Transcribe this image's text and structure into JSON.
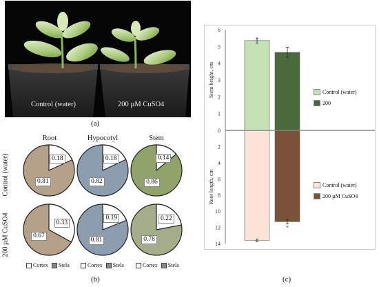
{
  "panel_a": {
    "photo_left_label": "Control (water)",
    "photo_right_label": "200 µM  CuSO4",
    "caption": "(a)"
  },
  "panel_b": {
    "caption": "(b)",
    "columns": [
      "Root",
      "Hypocotyl",
      "Stem"
    ],
    "rows": [
      "Control (water)",
      "200 µM CuSO4"
    ],
    "legend": {
      "cortex": "Cortex",
      "stela": "Stela"
    },
    "colors": {
      "root": "#b5a08a",
      "hypocotyl": "#8c9db0",
      "stem": "#8fa36a",
      "stem_cu": "#a3ad8a",
      "cortex": "#ffffff"
    }
  },
  "panel_c": {
    "caption": "(c)",
    "upper_legend": [
      "Control (water)",
      "200"
    ],
    "lower_legend": [
      "Control (water)",
      "200  µM  CuSO4"
    ],
    "colors": {
      "stem_control": "#c5e2b4",
      "stem_cu": "#4a6a3c",
      "root_control": "#fbe3d6",
      "root_cu": "#7a5238"
    }
  },
  "chart_data": [
    {
      "type": "pie",
      "title": "Root",
      "series": [
        {
          "name": "Control (water)",
          "values": [
            0.18,
            0.81
          ]
        },
        {
          "name": "200 µM CuSO4",
          "values": [
            0.33,
            0.67
          ]
        }
      ],
      "categories": [
        "Cortex",
        "Stela"
      ]
    },
    {
      "type": "pie",
      "title": "Hypocotyl",
      "series": [
        {
          "name": "Control (water)",
          "values": [
            0.18,
            0.82
          ]
        },
        {
          "name": "200 µM CuSO4",
          "values": [
            0.19,
            0.81
          ]
        }
      ],
      "categories": [
        "Cortex",
        "Stela"
      ]
    },
    {
      "type": "pie",
      "title": "Stem",
      "series": [
        {
          "name": "Control (water)",
          "values": [
            0.14,
            0.86
          ]
        },
        {
          "name": "200 µM CuSO4",
          "values": [
            0.22,
            0.78
          ]
        }
      ],
      "categories": [
        "Cortex",
        "Stela"
      ]
    },
    {
      "type": "bar",
      "ylabel": "Stem height, cm",
      "ylim": [
        0,
        6
      ],
      "yticks": [
        0,
        1,
        2,
        3,
        4,
        5,
        6
      ],
      "series": [
        {
          "name": "Control (water)",
          "values": [
            5.35
          ],
          "error": 0.15
        },
        {
          "name": "200",
          "values": [
            4.65
          ],
          "error": 0.3
        }
      ]
    },
    {
      "type": "bar",
      "ylabel": "Root length, cm",
      "ylim": [
        0,
        14
      ],
      "yticks": [
        0,
        2,
        4,
        6,
        8,
        10,
        12,
        14
      ],
      "series": [
        {
          "name": "Control (water)",
          "values": [
            13.6
          ],
          "error": 0.15
        },
        {
          "name": "200  µM  CuSO4",
          "values": [
            11.3
          ],
          "error": 0.25,
          "annotation": "*"
        }
      ]
    }
  ]
}
